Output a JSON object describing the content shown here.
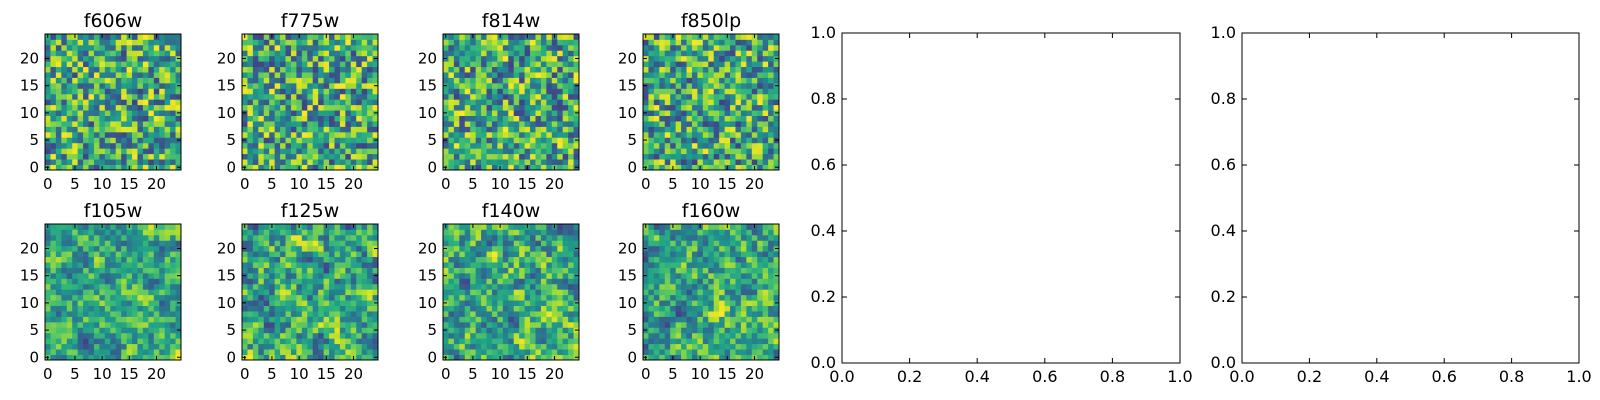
{
  "chart_data": [
    {
      "type": "heatmap",
      "title": "f606w",
      "x_ticks": [
        "0",
        "5",
        "10",
        "15",
        "20"
      ],
      "y_ticks": [
        "0",
        "5",
        "10",
        "15",
        "20"
      ],
      "xlim": [
        0,
        24
      ],
      "ylim": [
        0,
        24
      ],
      "grid": false,
      "colormap": "viridis"
    },
    {
      "type": "heatmap",
      "title": "f775w",
      "x_ticks": [
        "0",
        "5",
        "10",
        "15",
        "20"
      ],
      "y_ticks": [
        "0",
        "5",
        "10",
        "15",
        "20"
      ],
      "xlim": [
        0,
        24
      ],
      "ylim": [
        0,
        24
      ],
      "grid": false,
      "colormap": "viridis"
    },
    {
      "type": "heatmap",
      "title": "f814w",
      "x_ticks": [
        "0",
        "5",
        "10",
        "15",
        "20"
      ],
      "y_ticks": [
        "0",
        "5",
        "10",
        "15",
        "20"
      ],
      "xlim": [
        0,
        24
      ],
      "ylim": [
        0,
        24
      ],
      "grid": false,
      "colormap": "viridis"
    },
    {
      "type": "heatmap",
      "title": "f850lp",
      "x_ticks": [
        "0",
        "5",
        "10",
        "15",
        "20"
      ],
      "y_ticks": [
        "0",
        "5",
        "10",
        "15",
        "20"
      ],
      "xlim": [
        0,
        24
      ],
      "ylim": [
        0,
        24
      ],
      "grid": false,
      "colormap": "viridis"
    },
    {
      "type": "heatmap",
      "title": "f105w",
      "x_ticks": [
        "0",
        "5",
        "10",
        "15",
        "20"
      ],
      "y_ticks": [
        "0",
        "5",
        "10",
        "15",
        "20"
      ],
      "xlim": [
        0,
        24
      ],
      "ylim": [
        0,
        24
      ],
      "grid": false,
      "colormap": "viridis"
    },
    {
      "type": "heatmap",
      "title": "f125w",
      "x_ticks": [
        "0",
        "5",
        "10",
        "15",
        "20"
      ],
      "y_ticks": [
        "0",
        "5",
        "10",
        "15",
        "20"
      ],
      "xlim": [
        0,
        24
      ],
      "ylim": [
        0,
        24
      ],
      "grid": false,
      "colormap": "viridis"
    },
    {
      "type": "heatmap",
      "title": "f140w",
      "x_ticks": [
        "0",
        "5",
        "10",
        "15",
        "20"
      ],
      "y_ticks": [
        "0",
        "5",
        "10",
        "15",
        "20"
      ],
      "xlim": [
        0,
        24
      ],
      "ylim": [
        0,
        24
      ],
      "grid": false,
      "colormap": "viridis"
    },
    {
      "type": "heatmap",
      "title": "f160w",
      "x_ticks": [
        "0",
        "5",
        "10",
        "15",
        "20"
      ],
      "y_ticks": [
        "0",
        "5",
        "10",
        "15",
        "20"
      ],
      "xlim": [
        0,
        24
      ],
      "ylim": [
        0,
        24
      ],
      "grid": false,
      "colormap": "viridis"
    },
    {
      "type": "empty",
      "title": "",
      "x_ticks": [
        "0.0",
        "0.2",
        "0.4",
        "0.6",
        "0.8",
        "1.0"
      ],
      "y_ticks": [
        "0.0",
        "0.2",
        "0.4",
        "0.6",
        "0.8",
        "1.0"
      ],
      "xlim": [
        0,
        1
      ],
      "ylim": [
        0,
        1
      ],
      "grid": false
    },
    {
      "type": "empty",
      "title": "",
      "x_ticks": [
        "0.0",
        "0.2",
        "0.4",
        "0.6",
        "0.8",
        "1.0"
      ],
      "y_ticks": [
        "0.0",
        "0.2",
        "0.4",
        "0.6",
        "0.8",
        "1.0"
      ],
      "xlim": [
        0,
        1
      ],
      "ylim": [
        0,
        1
      ],
      "grid": false
    }
  ],
  "colors": {
    "axis": "#000000",
    "background": "#ffffff",
    "colormap_low": "#440154",
    "colormap_mid": "#21918c",
    "colormap_high": "#fde725"
  }
}
